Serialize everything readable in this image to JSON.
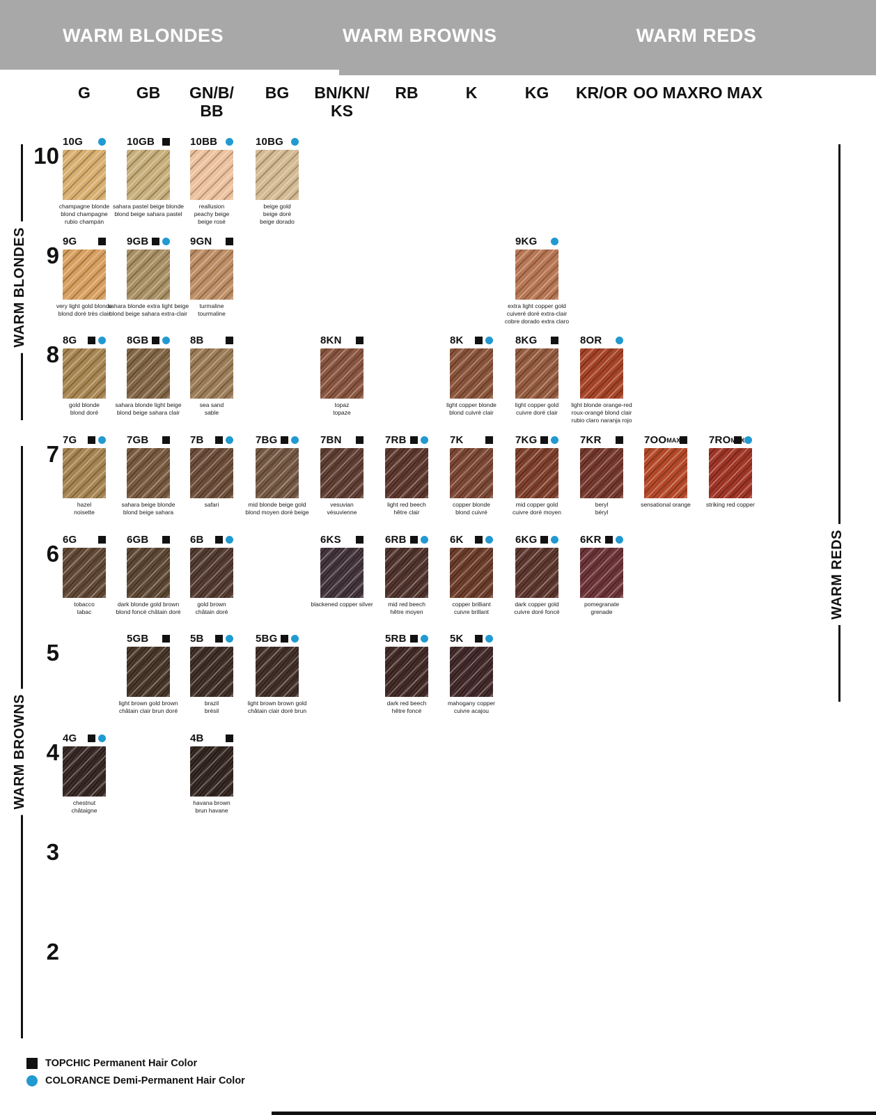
{
  "header": {
    "sections": [
      "WARM BLONDES",
      "WARM BROWNS",
      "WARM REDS"
    ]
  },
  "columns": [
    "G",
    "GB",
    "GN/B/\nBB",
    "BG",
    "BN/KN/\nKS",
    "RB",
    "K",
    "KG",
    "KR/OR",
    "OO MAX",
    "RO MAX"
  ],
  "rows": [
    "10",
    "9",
    "8",
    "7",
    "6",
    "5",
    "4",
    "3",
    "2"
  ],
  "side_labels": {
    "warm_blondes": "WARM BLONDES",
    "warm_browns": "WARM BROWNS",
    "warm_reds": "WARM REDS"
  },
  "legend": {
    "topchic_label": "TOPCHIC Permanent Hair Color",
    "colorance_label": "COLORANCE Demi-Permanent Hair Color"
  },
  "colors": {
    "banner_gray": "#a8a8a8",
    "accent_blue": "#2199d1",
    "marker_black": "#111111"
  },
  "swatches": [
    {
      "code": "10G",
      "row": "10",
      "col": 0,
      "tc": false,
      "co": true,
      "color": "#d6ac6b",
      "names": [
        "champagne blonde",
        "blond champagne",
        "rubio champán"
      ]
    },
    {
      "code": "10GB",
      "row": "10",
      "col": 1,
      "tc": true,
      "co": false,
      "color": "#c6ac77",
      "names": [
        "sahara pastel beige blonde",
        "blond beige sahara pastel"
      ]
    },
    {
      "code": "10BB",
      "row": "10",
      "col": 2,
      "tc": false,
      "co": true,
      "color": "#ecc09c",
      "names": [
        "reallusion",
        "peachy beige",
        "beige rosé"
      ]
    },
    {
      "code": "10BG",
      "row": "10",
      "col": 3,
      "tc": false,
      "co": true,
      "color": "#d3b890",
      "names": [
        "beige gold",
        "beige doré",
        "beige dorado"
      ]
    },
    {
      "code": "9G",
      "row": "9",
      "col": 0,
      "tc": true,
      "co": false,
      "color": "#d69c5a",
      "names": [
        "very light gold blonde",
        "blond doré très clair"
      ]
    },
    {
      "code": "9GB",
      "row": "9",
      "col": 1,
      "tc": true,
      "co": true,
      "color": "#a68c60",
      "names": [
        "sahara blonde extra light beige",
        "blond beige sahara extra-clair"
      ]
    },
    {
      "code": "9GN",
      "row": "9",
      "col": 2,
      "tc": true,
      "co": false,
      "color": "#bb8a60",
      "names": [
        "turmaline",
        "tourmaline"
      ]
    },
    {
      "code": "9KG",
      "row": "9",
      "col": 7,
      "tc": false,
      "co": true,
      "color": "#b5724e",
      "names": [
        "extra light copper gold",
        "cuiveré doré extra-clair",
        "cobre dorado extra claro"
      ]
    },
    {
      "code": "8G",
      "row": "8",
      "col": 0,
      "tc": true,
      "co": true,
      "color": "#a5824c",
      "names": [
        "gold blonde",
        "blond doré"
      ]
    },
    {
      "code": "8GB",
      "row": "8",
      "col": 1,
      "tc": true,
      "co": true,
      "color": "#7e6140",
      "names": [
        "sahara blonde light beige",
        "blond beige sahara clair"
      ]
    },
    {
      "code": "8B",
      "row": "8",
      "col": 2,
      "tc": true,
      "co": false,
      "color": "#987852",
      "names": [
        "sea sand",
        "sable"
      ]
    },
    {
      "code": "8KN",
      "row": "8",
      "col": 4,
      "tc": true,
      "co": false,
      "color": "#85503a",
      "names": [
        "topaz",
        "topaze"
      ]
    },
    {
      "code": "8K",
      "row": "8",
      "col": 6,
      "tc": true,
      "co": true,
      "color": "#864f34",
      "names": [
        "light copper blonde",
        "blond cuivré clair"
      ]
    },
    {
      "code": "8KG",
      "row": "8",
      "col": 7,
      "tc": true,
      "co": false,
      "color": "#915639",
      "names": [
        "light copper gold",
        "cuivre doré clair"
      ]
    },
    {
      "code": "8OR",
      "row": "8",
      "col": 8,
      "tc": false,
      "co": true,
      "color": "#a33e21",
      "names": [
        "light blonde orange-red",
        "roux-orangé blond clair",
        "rubio claro naranja rojo"
      ]
    },
    {
      "code": "7G",
      "row": "7",
      "col": 0,
      "tc": true,
      "co": true,
      "color": "#a3804c",
      "names": [
        "hazel",
        "noisette"
      ]
    },
    {
      "code": "7GB",
      "row": "7",
      "col": 1,
      "tc": true,
      "co": false,
      "color": "#745539",
      "names": [
        "sahara beige blonde",
        "blond beige sahara"
      ]
    },
    {
      "code": "7B",
      "row": "7",
      "col": 2,
      "tc": true,
      "co": true,
      "color": "#684834",
      "names": [
        "safari"
      ]
    },
    {
      "code": "7BG",
      "row": "7",
      "col": 3,
      "tc": true,
      "co": true,
      "color": "#70533e",
      "names": [
        "mid blonde beige gold",
        "blond moyen doré beige"
      ]
    },
    {
      "code": "7BN",
      "row": "7",
      "col": 4,
      "tc": true,
      "co": false,
      "color": "#5b392d",
      "names": [
        "vesuvian",
        "vésuvienne"
      ]
    },
    {
      "code": "7RB",
      "row": "7",
      "col": 5,
      "tc": true,
      "co": true,
      "color": "#583228",
      "names": [
        "light red beech",
        "hêtre clair"
      ]
    },
    {
      "code": "7K",
      "row": "7",
      "col": 6,
      "tc": true,
      "co": false,
      "color": "#78422e",
      "names": [
        "copper blonde",
        "blond cuivré"
      ]
    },
    {
      "code": "7KG",
      "row": "7",
      "col": 7,
      "tc": true,
      "co": true,
      "color": "#7a3a26",
      "names": [
        "mid copper gold",
        "cuivre doré moyen"
      ]
    },
    {
      "code": "7KR",
      "row": "7",
      "col": 8,
      "tc": true,
      "co": false,
      "color": "#703227",
      "names": [
        "beryl",
        "béryl"
      ]
    },
    {
      "code": "7OO",
      "max": "MAX",
      "row": "7",
      "col": 9,
      "tc": true,
      "co": false,
      "color": "#b14322",
      "names": [
        "sensational orange"
      ]
    },
    {
      "code": "7RO",
      "max": "MAX",
      "row": "7",
      "col": 10,
      "tc": true,
      "co": true,
      "color": "#9c2f20",
      "names": [
        "striking red copper"
      ]
    },
    {
      "code": "6G",
      "row": "6",
      "col": 0,
      "tc": true,
      "co": false,
      "color": "#5c422f",
      "names": [
        "tobacco",
        "tabac"
      ]
    },
    {
      "code": "6GB",
      "row": "6",
      "col": 1,
      "tc": true,
      "co": false,
      "color": "#58422e",
      "names": [
        "dark blonde gold brown",
        "blond foncé châtain doré"
      ]
    },
    {
      "code": "6B",
      "row": "6",
      "col": 2,
      "tc": true,
      "co": true,
      "color": "#4e352b",
      "names": [
        "gold brown",
        "châtain doré"
      ]
    },
    {
      "code": "6KS",
      "row": "6",
      "col": 4,
      "tc": true,
      "co": false,
      "color": "#3d2e35",
      "names": [
        "blackened copper silver"
      ]
    },
    {
      "code": "6RB",
      "row": "6",
      "col": 5,
      "tc": true,
      "co": true,
      "color": "#4b2e27",
      "names": [
        "mid red beech",
        "hêtre moyen"
      ]
    },
    {
      "code": "6K",
      "row": "6",
      "col": 6,
      "tc": true,
      "co": true,
      "color": "#673724",
      "names": [
        "copper brilliant",
        "cuivre brillant"
      ]
    },
    {
      "code": "6KG",
      "row": "6",
      "col": 7,
      "tc": true,
      "co": true,
      "color": "#583128",
      "names": [
        "dark copper gold",
        "cuivre doré foncé"
      ]
    },
    {
      "code": "6KR",
      "row": "6",
      "col": 8,
      "tc": true,
      "co": true,
      "color": "#672d31",
      "names": [
        "pomegranate",
        "grenade"
      ]
    },
    {
      "code": "5GB",
      "row": "5",
      "col": 1,
      "tc": true,
      "co": false,
      "color": "#423023",
      "names": [
        "light brown gold brown",
        "châtain clair brun doré"
      ]
    },
    {
      "code": "5B",
      "row": "5",
      "col": 2,
      "tc": true,
      "co": true,
      "color": "#392921",
      "names": [
        "brazil",
        "brésil"
      ]
    },
    {
      "code": "5BG",
      "row": "5",
      "col": 3,
      "tc": true,
      "co": true,
      "color": "#3c2a22",
      "names": [
        "light brown brown gold",
        "châtain clair doré brun"
      ]
    },
    {
      "code": "5RB",
      "row": "5",
      "col": 5,
      "tc": true,
      "co": true,
      "color": "#3d2521",
      "names": [
        "dark red beech",
        "hêtre foncé"
      ]
    },
    {
      "code": "5K",
      "row": "5",
      "col": 6,
      "tc": true,
      "co": true,
      "color": "#3d2424",
      "names": [
        "mahogany copper",
        "cuivre acajou"
      ]
    },
    {
      "code": "4G",
      "row": "4",
      "col": 0,
      "tc": true,
      "co": true,
      "color": "#32231f",
      "names": [
        "chestnut",
        "châtaigne"
      ]
    },
    {
      "code": "4B",
      "row": "4",
      "col": 2,
      "tc": true,
      "co": false,
      "color": "#2f211c",
      "names": [
        "havana brown",
        "brun havane"
      ]
    }
  ]
}
